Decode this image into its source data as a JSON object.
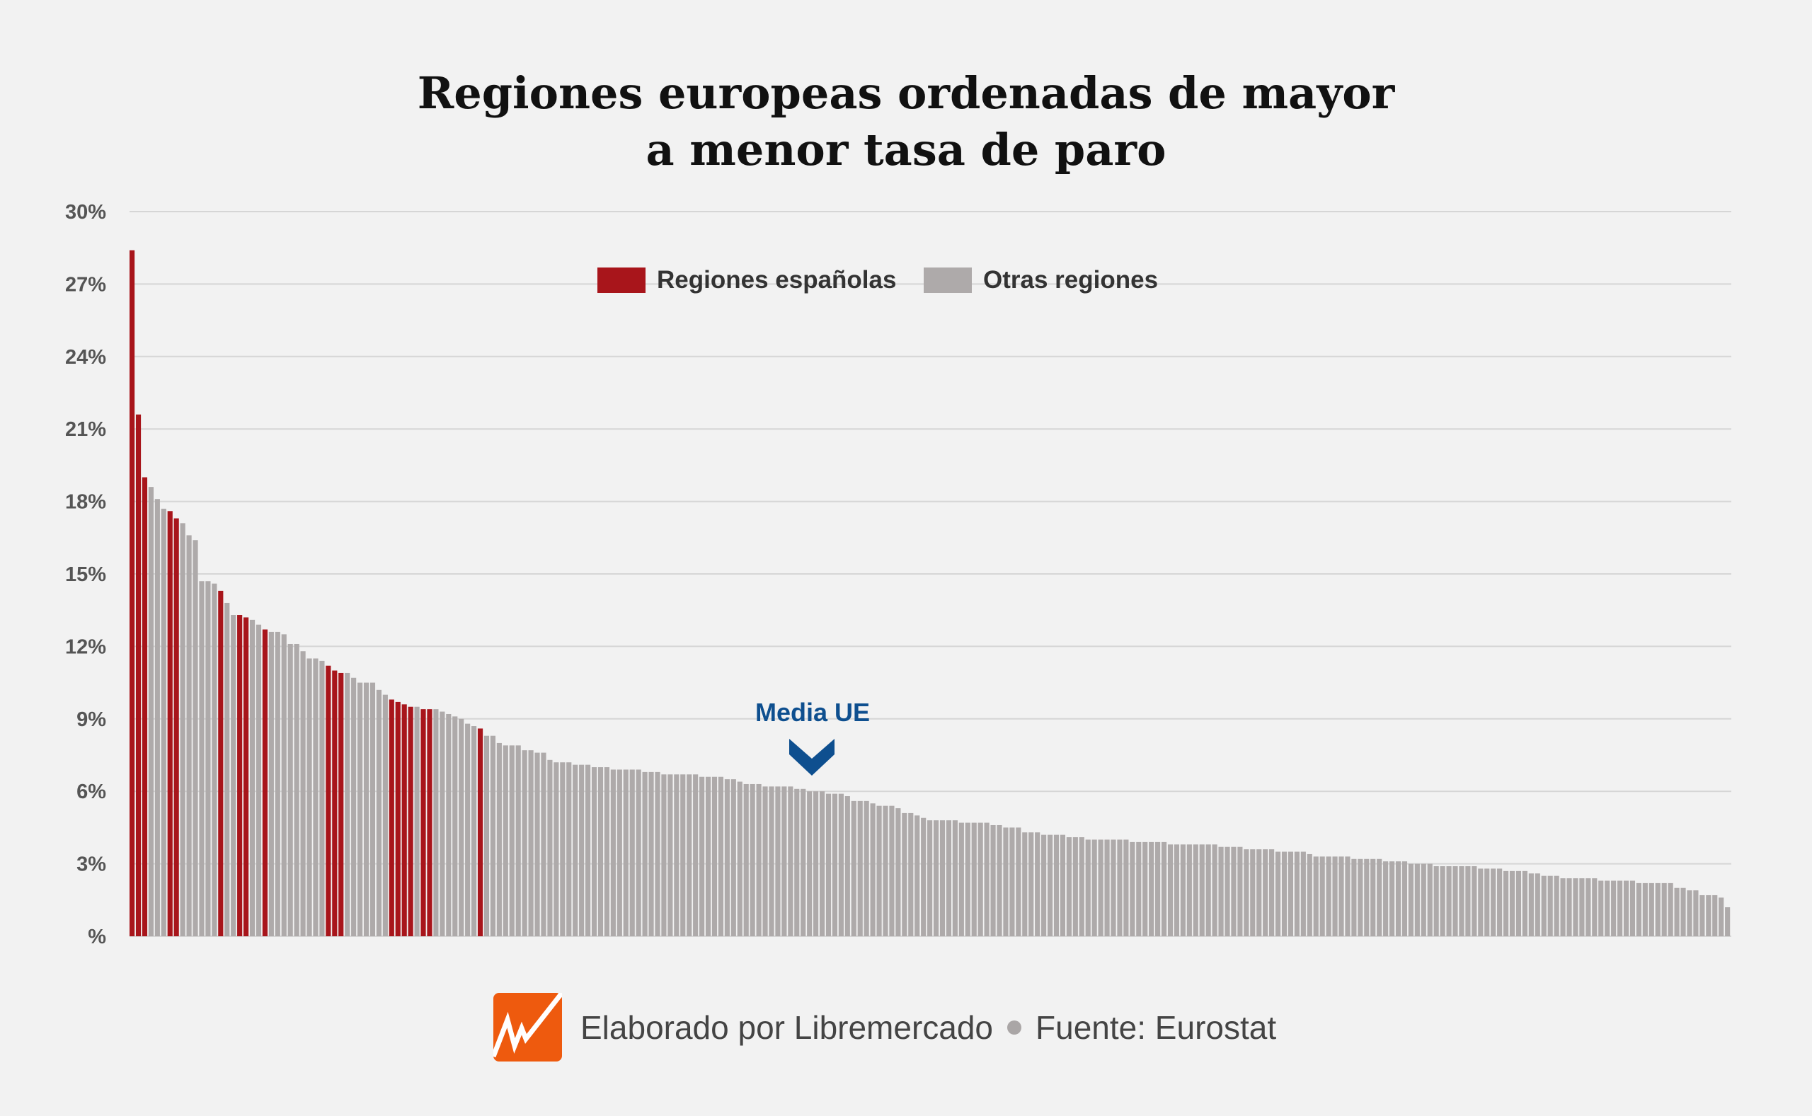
{
  "chart_data": {
    "type": "bar",
    "title": "Regiones europeas ordenadas de mayor a menor tasa de paro",
    "title_lines": [
      "Regiones europeas ordenadas de mayor",
      "a menor tasa de paro"
    ],
    "xlabel": "",
    "ylabel": "",
    "ylim": [
      0,
      30
    ],
    "yticks": [
      0,
      3,
      6,
      9,
      12,
      15,
      18,
      21,
      24,
      27,
      30
    ],
    "ytick_labels": [
      "%",
      "3%",
      "6%",
      "9%",
      "12%",
      "15%",
      "18%",
      "21%",
      "24%",
      "27%",
      "30%"
    ],
    "grid": true,
    "legend_position": "top-center",
    "legend": [
      {
        "label": "Regiones españolas",
        "color": "#a8151b"
      },
      {
        "label": "Otras regiones",
        "color": "#aeaaaa"
      }
    ],
    "values": [
      28.4,
      21.6,
      19.0,
      18.6,
      18.1,
      17.7,
      17.6,
      17.3,
      17.1,
      16.6,
      16.4,
      14.7,
      14.7,
      14.6,
      14.3,
      13.8,
      13.3,
      13.3,
      13.2,
      13.1,
      12.9,
      12.7,
      12.6,
      12.6,
      12.5,
      12.1,
      12.1,
      11.8,
      11.5,
      11.5,
      11.4,
      11.2,
      11.0,
      10.9,
      10.9,
      10.7,
      10.5,
      10.5,
      10.5,
      10.2,
      10.0,
      9.8,
      9.7,
      9.6,
      9.5,
      9.5,
      9.4,
      9.4,
      9.4,
      9.3,
      9.2,
      9.1,
      9.0,
      8.8,
      8.7,
      8.6,
      8.3,
      8.3,
      8.0,
      7.9,
      7.9,
      7.9,
      7.7,
      7.7,
      7.6,
      7.6,
      7.3,
      7.2,
      7.2,
      7.2,
      7.1,
      7.1,
      7.1,
      7.0,
      7.0,
      7.0,
      6.9,
      6.9,
      6.9,
      6.9,
      6.9,
      6.8,
      6.8,
      6.8,
      6.7,
      6.7,
      6.7,
      6.7,
      6.7,
      6.7,
      6.6,
      6.6,
      6.6,
      6.6,
      6.5,
      6.5,
      6.4,
      6.3,
      6.3,
      6.3,
      6.2,
      6.2,
      6.2,
      6.2,
      6.2,
      6.1,
      6.1,
      6.0,
      6.0,
      6.0,
      5.9,
      5.9,
      5.9,
      5.8,
      5.6,
      5.6,
      5.6,
      5.5,
      5.4,
      5.4,
      5.4,
      5.3,
      5.1,
      5.1,
      5.0,
      4.9,
      4.8,
      4.8,
      4.8,
      4.8,
      4.8,
      4.7,
      4.7,
      4.7,
      4.7,
      4.7,
      4.6,
      4.6,
      4.5,
      4.5,
      4.5,
      4.3,
      4.3,
      4.3,
      4.2,
      4.2,
      4.2,
      4.2,
      4.1,
      4.1,
      4.1,
      4.0,
      4.0,
      4.0,
      4.0,
      4.0,
      4.0,
      4.0,
      3.9,
      3.9,
      3.9,
      3.9,
      3.9,
      3.9,
      3.8,
      3.8,
      3.8,
      3.8,
      3.8,
      3.8,
      3.8,
      3.8,
      3.7,
      3.7,
      3.7,
      3.7,
      3.6,
      3.6,
      3.6,
      3.6,
      3.6,
      3.5,
      3.5,
      3.5,
      3.5,
      3.5,
      3.4,
      3.3,
      3.3,
      3.3,
      3.3,
      3.3,
      3.3,
      3.2,
      3.2,
      3.2,
      3.2,
      3.2,
      3.1,
      3.1,
      3.1,
      3.1,
      3.0,
      3.0,
      3.0,
      3.0,
      2.9,
      2.9,
      2.9,
      2.9,
      2.9,
      2.9,
      2.9,
      2.8,
      2.8,
      2.8,
      2.8,
      2.7,
      2.7,
      2.7,
      2.7,
      2.6,
      2.6,
      2.5,
      2.5,
      2.5,
      2.4,
      2.4,
      2.4,
      2.4,
      2.4,
      2.4,
      2.3,
      2.3,
      2.3,
      2.3,
      2.3,
      2.3,
      2.2,
      2.2,
      2.2,
      2.2,
      2.2,
      2.2,
      2.0,
      2.0,
      1.9,
      1.9,
      1.7,
      1.7,
      1.7,
      1.6,
      1.2
    ],
    "spanish_ranks": [
      1,
      2,
      3,
      7,
      8,
      15,
      18,
      19,
      22,
      32,
      33,
      34,
      42,
      43,
      44,
      45,
      47,
      48,
      56
    ],
    "annotation": {
      "label": "Media UE",
      "rank": 108,
      "color": "#0e4f8f"
    }
  },
  "footer": {
    "credit": "Elaborado por Libremercado",
    "source": "Fuente: Eurostat",
    "logo_color": "#ee5a0e"
  }
}
